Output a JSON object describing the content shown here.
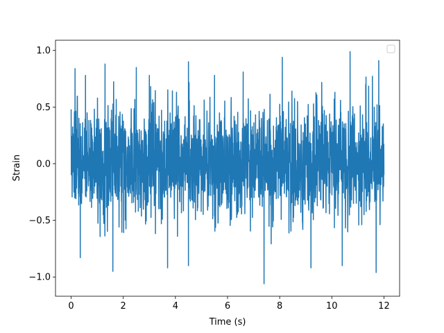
{
  "chart_data": {
    "type": "line",
    "title": "",
    "xlabel": "Time (s)",
    "ylabel": "Strain",
    "xlim": [
      -0.6,
      12.6
    ],
    "ylim": [
      -1.17,
      1.09
    ],
    "xticks": [
      0,
      2,
      4,
      6,
      8,
      10,
      12
    ],
    "xtick_labels": [
      "0",
      "2",
      "4",
      "6",
      "8",
      "10",
      "12"
    ],
    "yticks": [
      -1.0,
      -0.5,
      0.0,
      0.5,
      1.0
    ],
    "ytick_labels": [
      "−1.0",
      "−0.5",
      "0.0",
      "0.5",
      "1.0"
    ],
    "grid": false,
    "legend": {
      "location": "upper right",
      "entries": []
    },
    "series": [
      {
        "color": "#1f77b4",
        "x_range": [
          0,
          12
        ],
        "noise": {
          "typical_amplitude": 0.3,
          "min": -1.06,
          "max": 0.99
        },
        "peaks": [
          {
            "x": 0.15,
            "y": 0.84
          },
          {
            "x": 0.55,
            "y": 0.78
          },
          {
            "x": 1.3,
            "y": 0.88
          },
          {
            "x": 2.5,
            "y": 0.85
          },
          {
            "x": 3.0,
            "y": 0.78
          },
          {
            "x": 4.5,
            "y": 0.9
          },
          {
            "x": 5.5,
            "y": 0.78
          },
          {
            "x": 6.6,
            "y": 0.81
          },
          {
            "x": 8.1,
            "y": 0.94
          },
          {
            "x": 10.7,
            "y": 0.99
          },
          {
            "x": 11.3,
            "y": 0.7
          },
          {
            "x": 11.8,
            "y": 0.91
          }
        ],
        "troughs": [
          {
            "x": 0.35,
            "y": -0.83
          },
          {
            "x": 1.6,
            "y": -0.95
          },
          {
            "x": 3.7,
            "y": -0.92
          },
          {
            "x": 4.5,
            "y": -0.9
          },
          {
            "x": 7.4,
            "y": -1.06
          },
          {
            "x": 9.2,
            "y": -0.92
          },
          {
            "x": 10.4,
            "y": -0.9
          },
          {
            "x": 11.7,
            "y": -0.96
          }
        ]
      }
    ]
  }
}
